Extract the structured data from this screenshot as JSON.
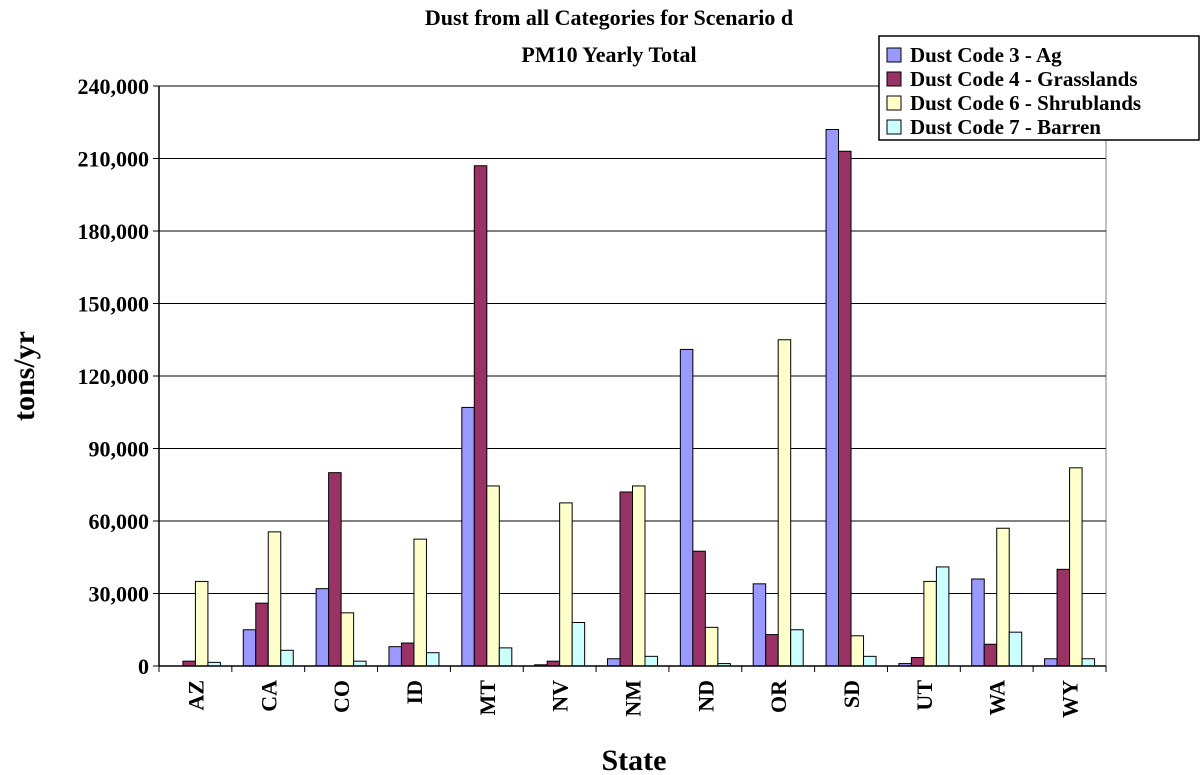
{
  "chart_data": {
    "type": "bar",
    "title": "Dust from all Categories for Scenario d",
    "subtitle": "PM10 Yearly Total",
    "xlabel": "State",
    "ylabel": "tons/yr",
    "categories": [
      "AZ",
      "CA",
      "CO",
      "ID",
      "MT",
      "NV",
      "NM",
      "ND",
      "OR",
      "SD",
      "UT",
      "WA",
      "WY"
    ],
    "ylim": [
      0,
      240000
    ],
    "yticks": [
      0,
      30000,
      60000,
      90000,
      120000,
      150000,
      180000,
      210000,
      240000
    ],
    "ytick_labels": [
      "0",
      "30,000",
      "60,000",
      "90,000",
      "120,000",
      "150,000",
      "180,000",
      "210,000",
      "240,000"
    ],
    "grid": true,
    "legend_position": "top-right",
    "series": [
      {
        "name": "Dust Code 3 - Ag",
        "color": "#9999ff",
        "values": [
          0,
          15000,
          32000,
          8000,
          107000,
          500,
          3000,
          131000,
          34000,
          222000,
          1000,
          36000,
          3000
        ]
      },
      {
        "name": "Dust Code 4 - Grasslands",
        "color": "#993366",
        "values": [
          2000,
          26000,
          80000,
          9500,
          207000,
          2000,
          72000,
          47500,
          13000,
          213000,
          3500,
          9000,
          40000
        ]
      },
      {
        "name": "Dust Code 6 - Shrublands",
        "color": "#ffffcc",
        "values": [
          35000,
          55500,
          22000,
          52500,
          74500,
          67500,
          74500,
          16000,
          135000,
          12500,
          35000,
          57000,
          82000
        ]
      },
      {
        "name": "Dust Code 7 - Barren",
        "color": "#ccffff",
        "values": [
          1500,
          6500,
          2000,
          5500,
          7500,
          18000,
          4000,
          1000,
          15000,
          4000,
          41000,
          14000,
          3000
        ]
      }
    ]
  }
}
